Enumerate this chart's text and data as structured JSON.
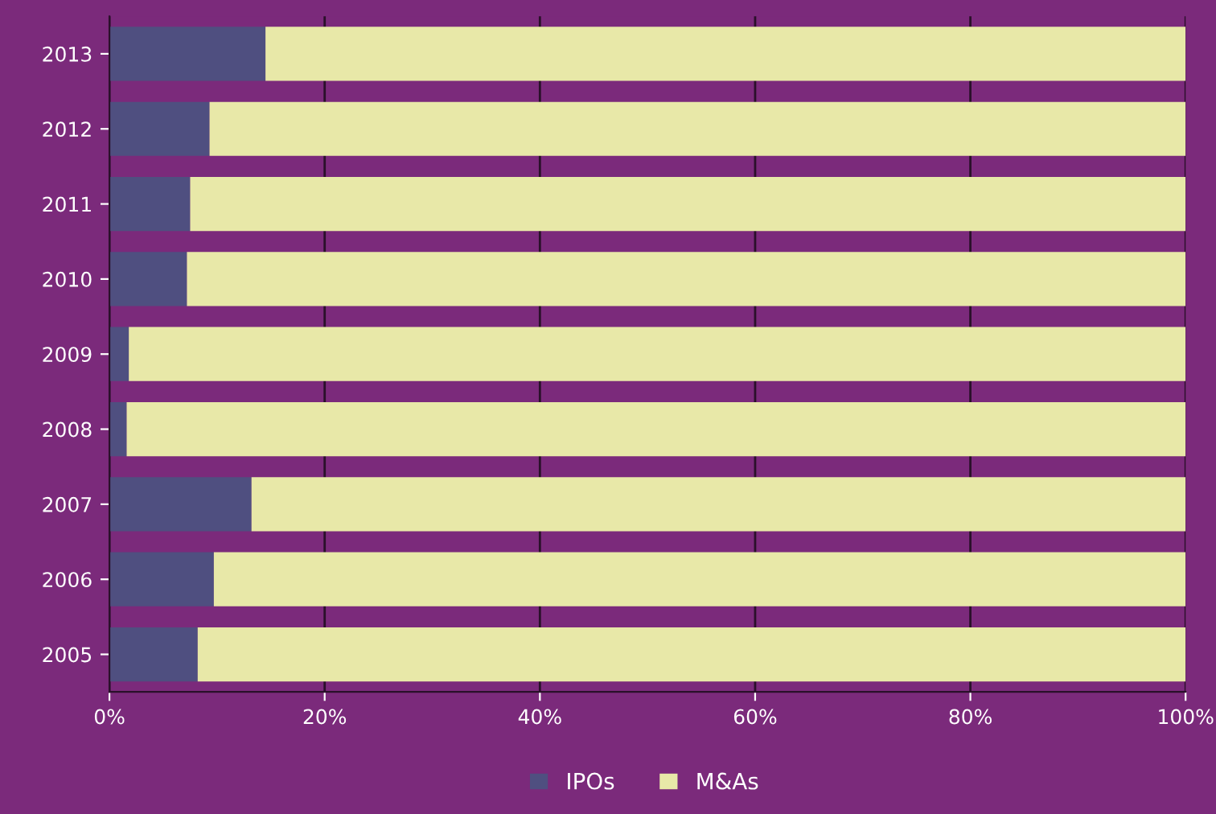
{
  "chart_data": {
    "type": "bar",
    "orientation": "horizontal",
    "stacked": true,
    "categories": [
      "2013",
      "2012",
      "2011",
      "2010",
      "2009",
      "2008",
      "2007",
      "2006",
      "2005"
    ],
    "series": [
      {
        "name": "IPOs",
        "color": "#4f4f80",
        "values": [
          14.5,
          9.3,
          7.5,
          7.2,
          1.8,
          1.6,
          13.2,
          9.7,
          8.2
        ]
      },
      {
        "name": "M&As",
        "color": "#e8e8a8",
        "values": [
          85.5,
          90.7,
          92.5,
          92.8,
          98.2,
          98.4,
          86.8,
          90.3,
          91.8
        ]
      }
    ],
    "xlim": [
      0,
      100
    ],
    "xticks": [
      {
        "value": 0,
        "label": "0%"
      },
      {
        "value": 20,
        "label": "20%"
      },
      {
        "value": 40,
        "label": "40%"
      },
      {
        "value": 60,
        "label": "60%"
      },
      {
        "value": 80,
        "label": "80%"
      },
      {
        "value": 100,
        "label": "100%"
      }
    ],
    "grid": "x",
    "legend": "bottom"
  }
}
